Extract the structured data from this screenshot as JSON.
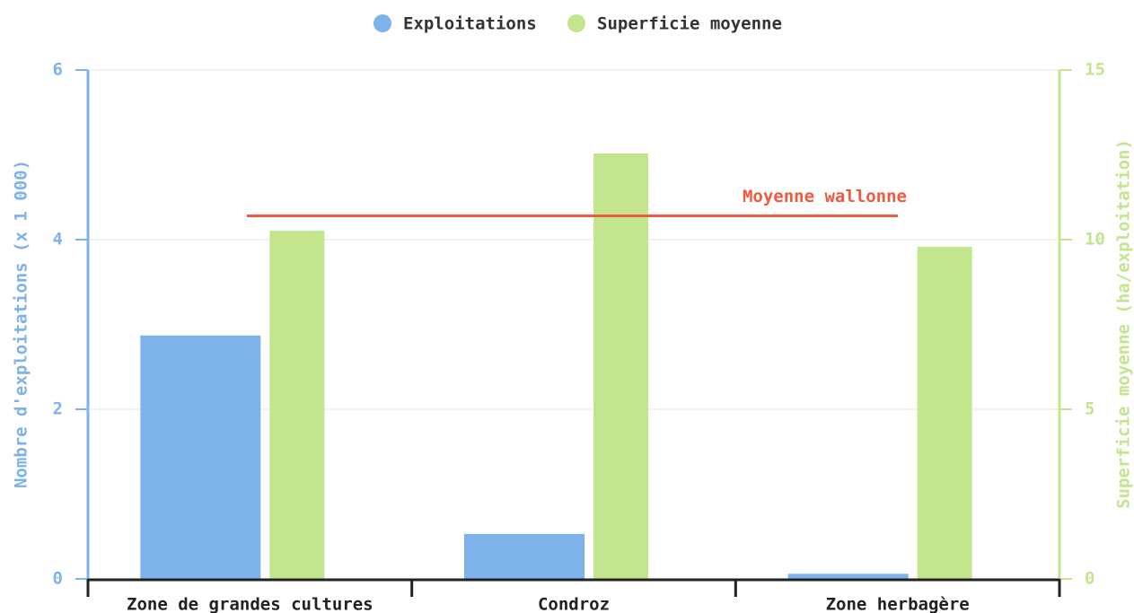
{
  "chart_data": {
    "type": "bar",
    "categories": [
      "Zone de grandes cultures",
      "Condroz",
      "Zone herbagère"
    ],
    "series": [
      {
        "name": "Exploitations",
        "color": "#7db3ea",
        "values": [
          2.87,
          0.53,
          0.06
        ]
      },
      {
        "name": "Superficie moyenne",
        "color": "#c2e58d",
        "axis": "y2",
        "values": [
          10.26,
          12.54,
          9.79
        ]
      }
    ],
    "ylabel": "Nombre d'exploitations (x 1 000)",
    "y2label": "Superficie moyenne (ha/exploitation)",
    "ylim": [
      0,
      6
    ],
    "yticks": [
      0,
      2,
      4,
      6
    ],
    "y2lim": [
      0,
      15
    ],
    "y2ticks": [
      0,
      5,
      10,
      15
    ],
    "reference_line": {
      "label": "Moyenne wallonne",
      "value": 10.7,
      "axis": "y2",
      "color": "#ee5a3e"
    },
    "grid": true,
    "legend": "top"
  }
}
